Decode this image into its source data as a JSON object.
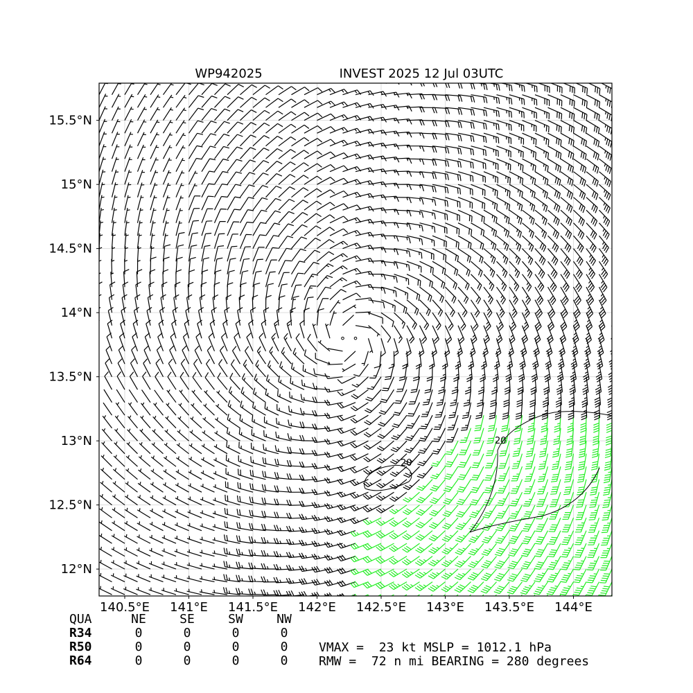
{
  "map": {
    "title_left": "WP942025",
    "title_right": "INVEST 2025 12 Jul 03UTC",
    "xlim": [
      140.3,
      144.3
    ],
    "ylim": [
      11.79,
      15.79
    ],
    "xticks": [
      {
        "value": 140.5,
        "label": "140.5°E"
      },
      {
        "value": 141,
        "label": "141°E"
      },
      {
        "value": 141.5,
        "label": "141.5°E"
      },
      {
        "value": 142,
        "label": "142°E"
      },
      {
        "value": 142.5,
        "label": "142.5°E"
      },
      {
        "value": 143,
        "label": "143°E"
      },
      {
        "value": 143.5,
        "label": "143.5°E"
      },
      {
        "value": 144,
        "label": "144°E"
      }
    ],
    "yticks": [
      {
        "value": 12,
        "label": "12°N"
      },
      {
        "value": 12.5,
        "label": "12.5°N"
      },
      {
        "value": 13,
        "label": "13°N"
      },
      {
        "value": 13.5,
        "label": "13.5°N"
      },
      {
        "value": 14,
        "label": "14°N"
      },
      {
        "value": 14.5,
        "label": "14.5°N"
      },
      {
        "value": 15,
        "label": "15°N"
      },
      {
        "value": 15.5,
        "label": "15.5°N"
      }
    ],
    "grid": true,
    "contour_labels": [
      "20",
      "20"
    ]
  },
  "table": {
    "header": [
      "QUA",
      "NE",
      "SE",
      "SW",
      "NW"
    ],
    "rows": [
      [
        "R34",
        0,
        0,
        0,
        0
      ],
      [
        "R50",
        0,
        0,
        0,
        0
      ],
      [
        "R64",
        0,
        0,
        0,
        0
      ]
    ]
  },
  "info": [
    "VMAX =  23 kt MSLP = 1012.1 hPa",
    "RMW =  72 n mi BEARING = 280 degrees"
  ]
}
